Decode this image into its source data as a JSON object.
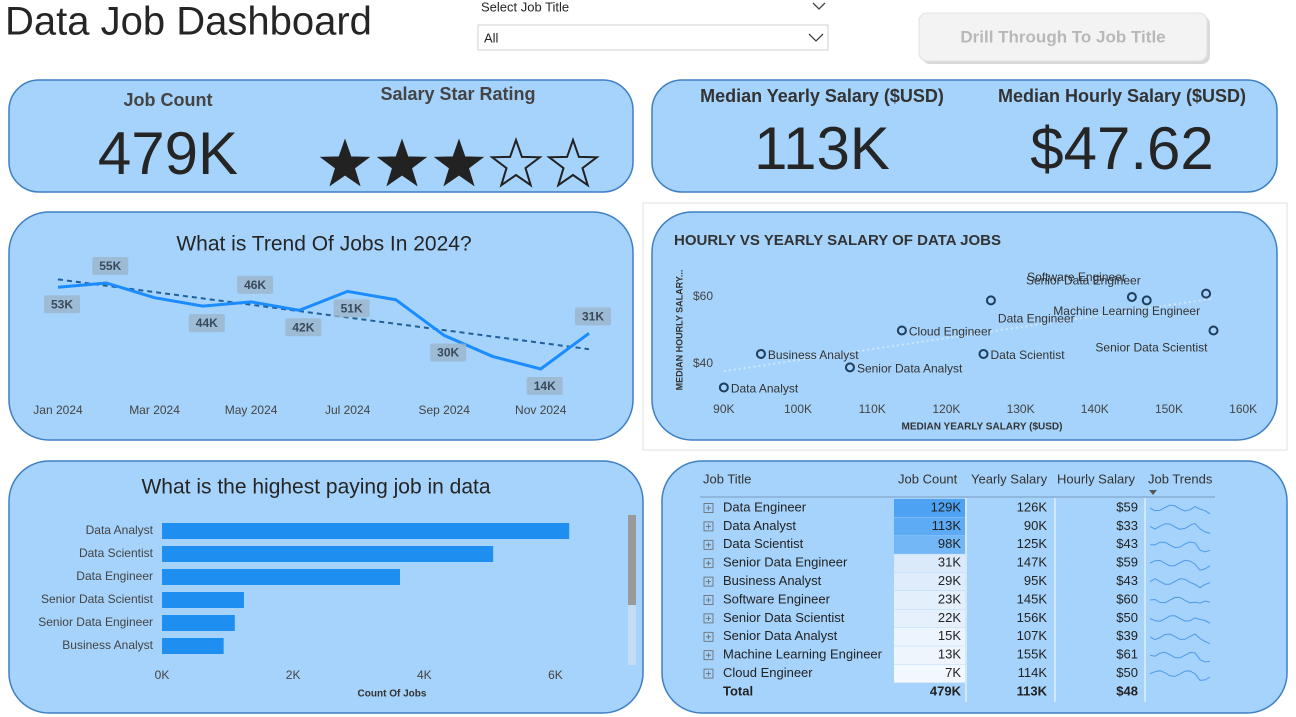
{
  "header": {
    "title": "Data Job Dashboard",
    "filter_label": "Select Job Title",
    "filter_value": "All",
    "button": "Drill Through To Job Title"
  },
  "kpis": {
    "job_count_label": "Job Count",
    "job_count": "479K",
    "star_label": "Salary Star Rating",
    "star_rating": 3,
    "star_max": 5,
    "yearly_label": "Median Yearly Salary ($USD)",
    "yearly": "113K",
    "hourly_label": "Median Hourly Salary ($USD)",
    "hourly": "$47.62"
  },
  "chart_data": [
    {
      "type": "line",
      "title": "What is Trend Of Jobs In 2024?",
      "categories": [
        "Jan 2024",
        null,
        "Mar 2024",
        null,
        "May 2024",
        null,
        "Jul 2024",
        null,
        "Sep 2024",
        null,
        "Nov 2024",
        null
      ],
      "values": [
        53000,
        55000,
        48000,
        44000,
        46000,
        42000,
        51000,
        47000,
        30000,
        20000,
        14000,
        31000
      ],
      "value_labels": [
        "53K",
        "55K",
        null,
        "44K",
        "46K",
        "42K",
        "51K",
        null,
        "30K",
        null,
        "14K",
        "31K"
      ],
      "color": "#1a8cff",
      "trendline": true
    },
    {
      "type": "scatter",
      "title": "HOURLY VS YEARLY SALARY OF DATA JOBS",
      "xlabel": "MEDIAN YEARLY SALARY ($USD)",
      "ylabel": "MEDIAN HOURLY SALARY...",
      "labels": [
        "Data Engineer",
        "Data Analyst",
        "Data Scientist",
        "Senior Data Engineer",
        "Business Analyst",
        "Software Engineer",
        "Senior Data Scientist",
        "Senior Data Analyst",
        "Machine Learning Engineer",
        "Cloud Engineer"
      ],
      "x": [
        126000,
        90000,
        125000,
        147000,
        95000,
        145000,
        156000,
        107000,
        155000,
        114000
      ],
      "values": [
        59,
        33,
        43,
        59,
        43,
        60,
        50,
        39,
        61,
        50
      ],
      "xlim": [
        88000,
        162000
      ],
      "ylim": [
        30,
        70
      ],
      "xticks": [
        {
          "value": 90000,
          "label": "90K"
        },
        {
          "value": 100000,
          "label": "100K"
        },
        {
          "value": 110000,
          "label": "110K"
        },
        {
          "value": 120000,
          "label": "120K"
        },
        {
          "value": 130000,
          "label": "130K"
        },
        {
          "value": 140000,
          "label": "140K"
        },
        {
          "value": 150000,
          "label": "150K"
        },
        {
          "value": 160000,
          "label": "160K"
        }
      ],
      "yticks": [
        {
          "value": 40,
          "label": "$40"
        },
        {
          "value": 60,
          "label": "$60"
        }
      ],
      "color": "#1f3d5c",
      "trendline": true
    },
    {
      "type": "bar",
      "orientation": "horizontal",
      "title": "What is the highest paying job in data",
      "xlabel": "Count Of Jobs",
      "categories": [
        "Data Analyst",
        "Data Scientist",
        "Data Engineer",
        "Senior Data Scientist",
        "Senior Data Engineer",
        "Business Analyst"
      ],
      "values": [
        6210,
        5050,
        3630,
        1250,
        1110,
        940
      ],
      "xlim": [
        0,
        7000
      ],
      "xticks": [
        {
          "value": 0,
          "label": "0K"
        },
        {
          "value": 2000,
          "label": "2K"
        },
        {
          "value": 4000,
          "label": "4K"
        },
        {
          "value": 6000,
          "label": "6K"
        }
      ],
      "color": "#1e8ef0"
    }
  ],
  "table": {
    "columns": [
      "Job Title",
      "Job Count",
      "Yearly Salary",
      "Hourly Salary",
      "Job Trends"
    ],
    "rows": [
      [
        "Data Engineer",
        "129K",
        "126K",
        "$59"
      ],
      [
        "Data Analyst",
        "113K",
        "90K",
        "$33"
      ],
      [
        "Data Scientist",
        "98K",
        "125K",
        "$43"
      ],
      [
        "Senior Data Engineer",
        "31K",
        "147K",
        "$59"
      ],
      [
        "Business Analyst",
        "29K",
        "95K",
        "$43"
      ],
      [
        "Software Engineer",
        "23K",
        "145K",
        "$60"
      ],
      [
        "Senior Data Scientist",
        "22K",
        "156K",
        "$50"
      ],
      [
        "Senior Data Analyst",
        "15K",
        "107K",
        "$39"
      ],
      [
        "Machine Learning Engineer",
        "13K",
        "155K",
        "$61"
      ],
      [
        "Cloud Engineer",
        "7K",
        "114K",
        "$50"
      ]
    ],
    "total": [
      "Total",
      "479K",
      "113K",
      "$48"
    ],
    "count_colors": [
      "#4ea2f4",
      "#5eabf5",
      "#74b7f6",
      "#dbeafb",
      "#dfecfb",
      "#e4effc",
      "#e6f0fc",
      "#ecf4fd",
      "#eef5fd",
      "#f3f8fe"
    ]
  }
}
